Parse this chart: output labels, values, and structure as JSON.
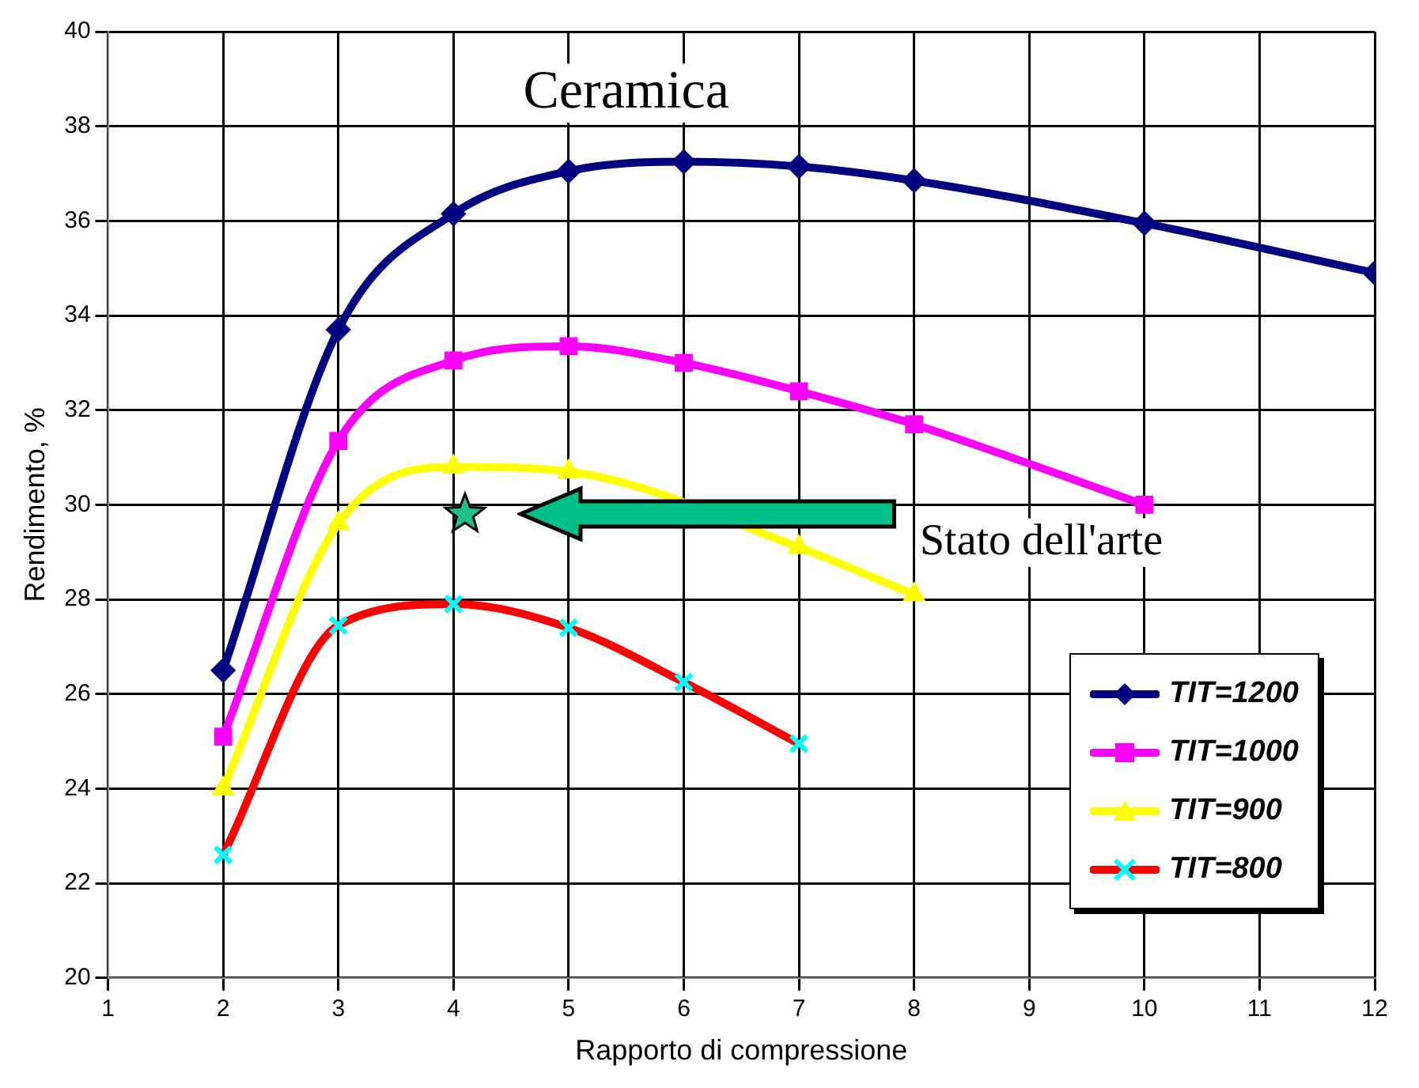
{
  "chart_data": {
    "type": "line",
    "xlabel": "Rapporto di compressione",
    "ylabel": "Rendimento, %",
    "xlim": [
      1,
      12
    ],
    "xticks": [
      1,
      2,
      3,
      4,
      5,
      6,
      7,
      8,
      9,
      10,
      11,
      12
    ],
    "ylim": [
      20,
      40
    ],
    "yticks": [
      20,
      22,
      24,
      26,
      28,
      30,
      32,
      34,
      36,
      38,
      40
    ],
    "grid": true,
    "legend": "bottom right",
    "series": [
      {
        "name": "TIT=1200",
        "color": "#000080",
        "marker": "diamond",
        "x": [
          2,
          3,
          4,
          5,
          6,
          7,
          8,
          10,
          12
        ],
        "values": [
          26.5,
          33.7,
          36.15,
          37.05,
          37.25,
          37.15,
          36.85,
          35.95,
          34.9
        ]
      },
      {
        "name": "TIT=1000",
        "color": "#ff00ff",
        "marker": "square",
        "x": [
          2,
          3,
          4,
          5,
          6,
          7,
          8,
          10
        ],
        "values": [
          25.1,
          31.35,
          33.05,
          33.35,
          33.0,
          32.4,
          31.7,
          30.0
        ]
      },
      {
        "name": "TIT=900",
        "color": "#ffff00",
        "marker": "triangle",
        "x": [
          2,
          3,
          4,
          5,
          6,
          7,
          8
        ],
        "values": [
          24.0,
          29.6,
          30.8,
          30.7,
          null,
          29.1,
          28.1
        ]
      },
      {
        "name": "TIT=800",
        "color": "#ff0000",
        "marker": "cross",
        "x": [
          2,
          3,
          4,
          5,
          6,
          7
        ],
        "values": [
          22.6,
          27.45,
          27.9,
          27.4,
          26.25,
          24.95
        ]
      },
      {
        "type": "scatter",
        "color": "#1dbf8a",
        "marker": "star",
        "x": [
          4.1
        ],
        "values": [
          29.8
        ]
      }
    ],
    "annotations": [
      "Ceramica",
      "Stato dell'arte"
    ]
  }
}
